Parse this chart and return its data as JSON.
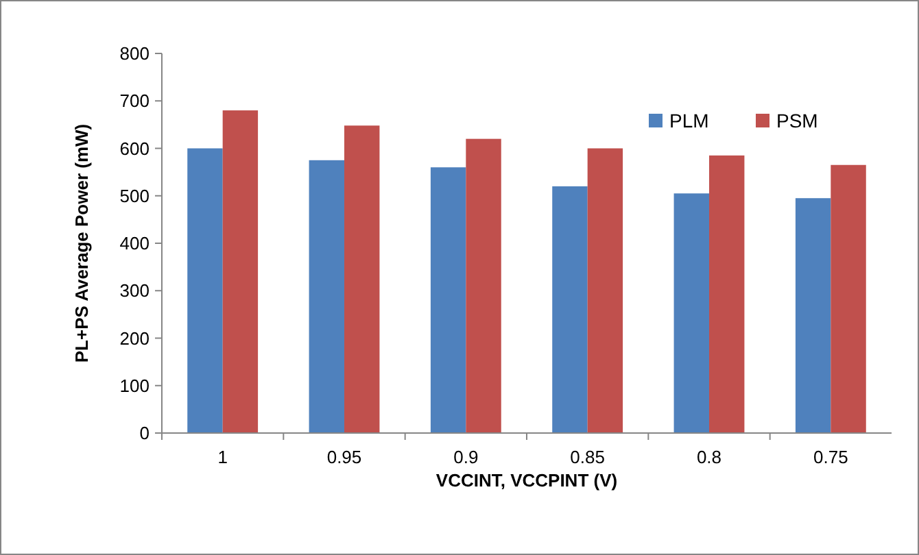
{
  "chart_data": {
    "type": "bar",
    "xlabel": "VCCINT, VCCPINT (V)",
    "ylabel": "PL+PS Average Power (mW)",
    "categories": [
      "1",
      "0.95",
      "0.9",
      "0.85",
      "0.8",
      "0.75"
    ],
    "series": [
      {
        "name": "PLM",
        "color": "#4f81bd",
        "values": [
          600,
          575,
          560,
          520,
          505,
          495
        ]
      },
      {
        "name": "PSM",
        "color": "#c0504d",
        "values": [
          680,
          648,
          620,
          600,
          585,
          565
        ]
      }
    ],
    "ylim": [
      0,
      800
    ],
    "yticks": [
      0,
      100,
      200,
      300,
      400,
      500,
      600,
      700,
      800
    ],
    "grid": false,
    "legend": "top right"
  }
}
